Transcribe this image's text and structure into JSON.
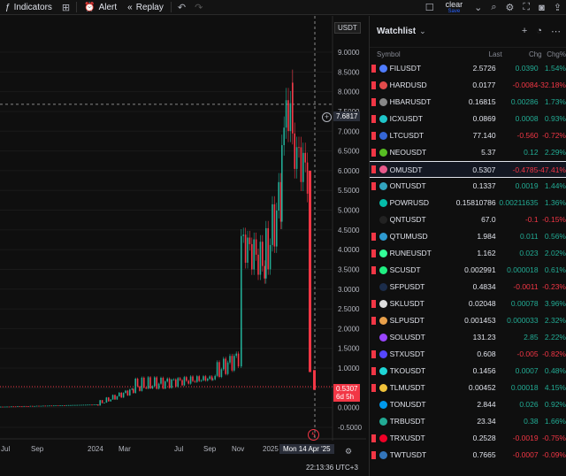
{
  "toolbar": {
    "indicators_label": "Indicators",
    "alert_label": "Alert",
    "replay_label": "Replay",
    "clear_label": "clear",
    "save_label": "Save"
  },
  "chart": {
    "ticker_label": "USDT",
    "crosshair_price": "7.6817",
    "last_price": "0.5307",
    "countdown": "6d 5h",
    "date_label": "Mon 14 Apr '25",
    "clock": "22:13:36 UTC+3",
    "price_ticks": [
      "9.0000",
      "8.5000",
      "8.0000",
      "7.5000",
      "7.0000",
      "6.5000",
      "6.0000",
      "5.5000",
      "5.0000",
      "4.5000",
      "4.0000",
      "3.5000",
      "3.0000",
      "2.5000",
      "2.0000",
      "1.5000",
      "1.0000",
      "0.5000",
      "0.0000",
      "-0.5000"
    ],
    "time_ticks": [
      "Jul",
      "Sep",
      "2024",
      "Mar",
      "Jul",
      "Sep",
      "Nov",
      "2025"
    ],
    "colors": {
      "up": "#22ab94",
      "down": "#f23645",
      "grid": "#1a1a1a"
    }
  },
  "watchlist": {
    "title": "Watchlist",
    "columns": {
      "symbol": "Symbol",
      "last": "Last",
      "chg": "Chg",
      "chgp": "Chg%"
    },
    "rows": [
      {
        "symbol": "FILUSDT",
        "last": "2.5726",
        "chg": "0.0390",
        "chgp": "1.54%",
        "dir": "pos",
        "flag": "#f23645",
        "coin": "#4f7cff"
      },
      {
        "symbol": "HARDUSD",
        "last": "0.0177",
        "chg": "-0.0084",
        "chgp": "-32.18%",
        "dir": "neg",
        "flag": "#f23645",
        "coin": "#e34b4b"
      },
      {
        "symbol": "HBARUSDT",
        "last": "0.16815",
        "chg": "0.00286",
        "chgp": "1.73%",
        "dir": "pos",
        "flag": "#f23645",
        "coin": "#888888"
      },
      {
        "symbol": "ICXUSDT",
        "last": "0.0869",
        "chg": "0.0008",
        "chgp": "0.93%",
        "dir": "pos",
        "flag": "#f23645",
        "coin": "#1fc5c9"
      },
      {
        "symbol": "LTCUSDT",
        "last": "77.140",
        "chg": "-0.560",
        "chgp": "-0.72%",
        "dir": "neg",
        "flag": "#f23645",
        "coin": "#3466d6"
      },
      {
        "symbol": "NEOUSDT",
        "last": "5.37",
        "chg": "0.12",
        "chgp": "2.29%",
        "dir": "pos",
        "flag": "#f23645",
        "coin": "#58be23"
      },
      {
        "symbol": "OMUSDT",
        "last": "0.5307",
        "chg": "-0.4785",
        "chgp": "-47.41%",
        "dir": "neg",
        "flag": "#f23645",
        "coin": "#e85a8c",
        "selected": true
      },
      {
        "symbol": "ONTUSDT",
        "last": "0.1337",
        "chg": "0.0019",
        "chgp": "1.44%",
        "dir": "pos",
        "flag": "#f23645",
        "coin": "#32a4be"
      },
      {
        "symbol": "POWRUSD",
        "last": "0.15810786",
        "chg": "0.00211635",
        "chgp": "1.36%",
        "dir": "pos",
        "flag": "",
        "coin": "#05bca9"
      },
      {
        "symbol": "QNTUSDT",
        "last": "67.0",
        "chg": "-0.1",
        "chgp": "-0.15%",
        "dir": "neg",
        "flag": "",
        "coin": "#222222"
      },
      {
        "symbol": "QTUMUSD",
        "last": "1.984",
        "chg": "0.011",
        "chgp": "0.56%",
        "dir": "pos",
        "flag": "#f23645",
        "coin": "#2e9ad0"
      },
      {
        "symbol": "RUNEUSDT",
        "last": "1.162",
        "chg": "0.023",
        "chgp": "2.02%",
        "dir": "pos",
        "flag": "#f23645",
        "coin": "#33ff99"
      },
      {
        "symbol": "SCUSDT",
        "last": "0.002991",
        "chg": "0.000018",
        "chgp": "0.61%",
        "dir": "pos",
        "flag": "#f23645",
        "coin": "#20ee82"
      },
      {
        "symbol": "SFPUSDT",
        "last": "0.4834",
        "chg": "-0.0011",
        "chgp": "-0.23%",
        "dir": "neg",
        "flag": "",
        "coin": "#1b2c4a"
      },
      {
        "symbol": "SKLUSDT",
        "last": "0.02048",
        "chg": "0.00078",
        "chgp": "3.96%",
        "dir": "pos",
        "flag": "#f23645",
        "coin": "#dddddd"
      },
      {
        "symbol": "SLPUSDT",
        "last": "0.001453",
        "chg": "0.000033",
        "chgp": "2.32%",
        "dir": "pos",
        "flag": "#f23645",
        "coin": "#e8a04b"
      },
      {
        "symbol": "SOLUSDT",
        "last": "131.23",
        "chg": "2.85",
        "chgp": "2.22%",
        "dir": "pos",
        "flag": "",
        "coin": "#9945ff"
      },
      {
        "symbol": "STXUSDT",
        "last": "0.608",
        "chg": "-0.005",
        "chgp": "-0.82%",
        "dir": "neg",
        "flag": "#f23645",
        "coin": "#5546ff"
      },
      {
        "symbol": "TKOUSDT",
        "last": "0.1456",
        "chg": "0.0007",
        "chgp": "0.48%",
        "dir": "pos",
        "flag": "#f23645",
        "coin": "#1fd6d6"
      },
      {
        "symbol": "TLMUSDT",
        "last": "0.00452",
        "chg": "0.00018",
        "chgp": "4.15%",
        "dir": "pos",
        "flag": "#f23645",
        "coin": "#f0c23a"
      },
      {
        "symbol": "TONUSDT",
        "last": "2.844",
        "chg": "0.026",
        "chgp": "0.92%",
        "dir": "pos",
        "flag": "",
        "coin": "#0098ea"
      },
      {
        "symbol": "TRBUSDT",
        "last": "23.34",
        "chg": "0.38",
        "chgp": "1.66%",
        "dir": "pos",
        "flag": "",
        "coin": "#22ab94"
      },
      {
        "symbol": "TRXUSDT",
        "last": "0.2528",
        "chg": "-0.0019",
        "chgp": "-0.75%",
        "dir": "neg",
        "flag": "#f23645",
        "coin": "#ef0027"
      },
      {
        "symbol": "TWTUSDT",
        "last": "0.7665",
        "chg": "-0.0007",
        "chgp": "-0.09%",
        "dir": "neg",
        "flag": "#f23645",
        "coin": "#3375bb"
      }
    ]
  }
}
